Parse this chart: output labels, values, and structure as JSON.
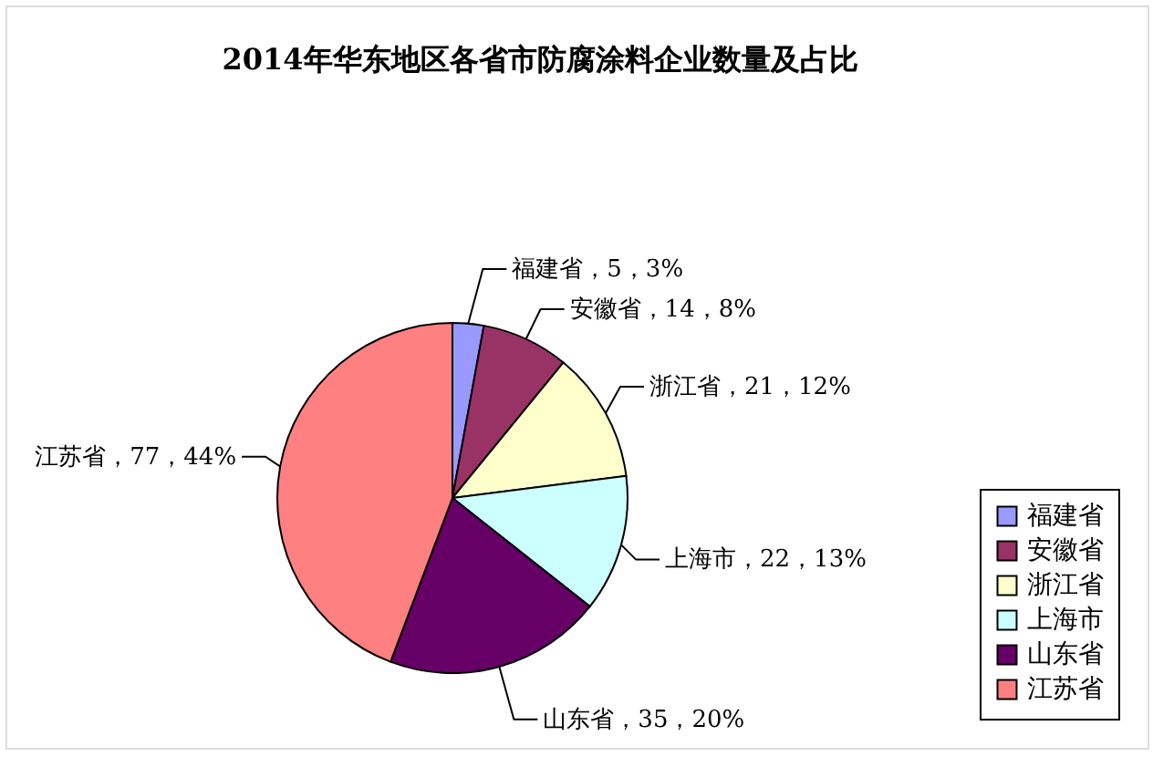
{
  "chart_data": {
    "type": "pie",
    "title": "2014年华东地区各省市防腐涂料企业数量及占比",
    "categories": [
      "福建省",
      "安徽省",
      "浙江省",
      "上海市",
      "山东省",
      "江苏省"
    ],
    "values": [
      5,
      14,
      21,
      22,
      35,
      77
    ],
    "colors": [
      "#9999ff",
      "#993366",
      "#ffffcc",
      "#ccffff",
      "#660066",
      "#ff8080"
    ],
    "value_labels": [
      "福建省，5，3%",
      "安徽省，14，8%",
      "浙江省，21，12%",
      "上海市，22，13%",
      "山东省，35，20%",
      "江苏省，77，44%"
    ],
    "legend": "bottom right"
  }
}
